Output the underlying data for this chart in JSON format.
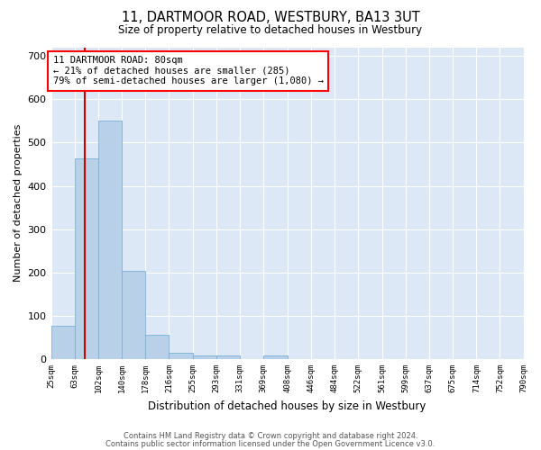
{
  "title1": "11, DARTMOOR ROAD, WESTBURY, BA13 3UT",
  "title2": "Size of property relative to detached houses in Westbury",
  "xlabel": "Distribution of detached houses by size in Westbury",
  "ylabel": "Number of detached properties",
  "footnote1": "Contains HM Land Registry data © Crown copyright and database right 2024.",
  "footnote2": "Contains public sector information licensed under the Open Government Licence v3.0.",
  "annotation_line1": "11 DARTMOOR ROAD: 80sqm",
  "annotation_line2": "← 21% of detached houses are smaller (285)",
  "annotation_line3": "79% of semi-detached houses are larger (1,080) →",
  "bar_color": "#b8d0e8",
  "bar_edge_color": "#7aafd4",
  "red_line_color": "#cc0000",
  "background_color": "#dce8f5",
  "bin_edges": [
    25,
    63,
    102,
    140,
    178,
    216,
    255,
    293,
    331,
    369,
    408,
    446,
    484,
    522,
    561,
    599,
    637,
    675,
    714,
    752,
    790
  ],
  "bar_heights": [
    78,
    463,
    550,
    204,
    57,
    15,
    9,
    9,
    0,
    9,
    0,
    0,
    0,
    0,
    0,
    0,
    0,
    0,
    0,
    0
  ],
  "red_line_x": 80,
  "ylim": [
    0,
    720
  ],
  "yticks": [
    0,
    100,
    200,
    300,
    400,
    500,
    600,
    700
  ]
}
